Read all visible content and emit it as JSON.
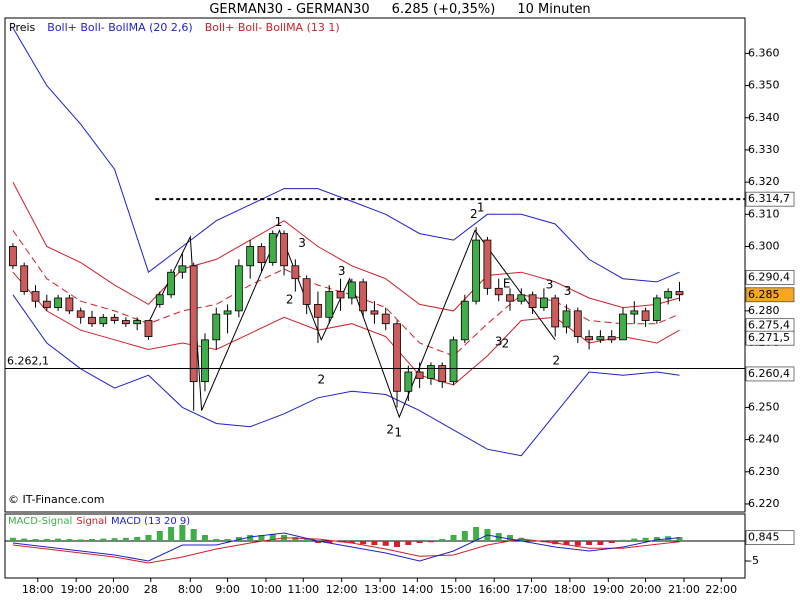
{
  "chart_data": [
    {
      "type": "candlestick",
      "title": "GERMAN30 - GERMAN30",
      "quote": "6.285 (+0,35%)",
      "interval": "10 Minuten",
      "ohlc_name": "Preis",
      "up_color": "#3fae49",
      "down_color": "#cd5c5c",
      "ohlc": [
        [
          6.3,
          6.301,
          6.293,
          6.294
        ],
        [
          6.294,
          6.295,
          6.285,
          6.286
        ],
        [
          6.286,
          6.288,
          6.281,
          6.283
        ],
        [
          6.283,
          6.285,
          6.28,
          6.281
        ],
        [
          6.281,
          6.285,
          6.28,
          6.284
        ],
        [
          6.284,
          6.285,
          6.279,
          6.28
        ],
        [
          6.28,
          6.281,
          6.276,
          6.278
        ],
        [
          6.278,
          6.28,
          6.275,
          6.276
        ],
        [
          6.276,
          6.279,
          6.275,
          6.278
        ],
        [
          6.278,
          6.279,
          6.276,
          6.277
        ],
        [
          6.277,
          6.278,
          6.275,
          6.276
        ],
        [
          6.276,
          6.278,
          6.274,
          6.277
        ],
        [
          6.277,
          6.277,
          6.271,
          6.272
        ],
        [
          6.282,
          6.286,
          6.281,
          6.285
        ],
        [
          6.285,
          6.293,
          6.284,
          6.292
        ],
        [
          6.292,
          6.298,
          6.29,
          6.294
        ],
        [
          6.294,
          6.295,
          6.249,
          6.258
        ],
        [
          6.258,
          6.273,
          6.255,
          6.271
        ],
        [
          6.271,
          6.281,
          6.268,
          6.279
        ],
        [
          6.279,
          6.282,
          6.273,
          6.28
        ],
        [
          6.28,
          6.296,
          6.278,
          6.294
        ],
        [
          6.294,
          6.302,
          6.29,
          6.3
        ],
        [
          6.3,
          6.301,
          6.292,
          6.295
        ],
        [
          6.295,
          6.305,
          6.294,
          6.304
        ],
        [
          6.304,
          6.305,
          6.291,
          6.294
        ],
        [
          6.294,
          6.296,
          6.286,
          6.29
        ],
        [
          6.29,
          6.291,
          6.279,
          6.282
        ],
        [
          6.282,
          6.286,
          6.27,
          6.278
        ],
        [
          6.278,
          6.288,
          6.276,
          6.286
        ],
        [
          6.286,
          6.29,
          6.28,
          6.284
        ],
        [
          6.284,
          6.29,
          6.282,
          6.289
        ],
        [
          6.289,
          6.29,
          6.278,
          6.28
        ],
        [
          6.28,
          6.283,
          6.276,
          6.279
        ],
        [
          6.279,
          6.281,
          6.274,
          6.276
        ],
        [
          6.276,
          6.277,
          6.25,
          6.255
        ],
        [
          6.255,
          6.263,
          6.252,
          6.261
        ],
        [
          6.261,
          6.264,
          6.256,
          6.259
        ],
        [
          6.259,
          6.264,
          6.257,
          6.263
        ],
        [
          6.263,
          6.264,
          6.256,
          6.258
        ],
        [
          6.258,
          6.272,
          6.257,
          6.271
        ],
        [
          6.271,
          6.285,
          6.27,
          6.283
        ],
        [
          6.283,
          6.306,
          6.282,
          6.302
        ],
        [
          6.302,
          6.303,
          6.285,
          6.287
        ],
        [
          6.287,
          6.29,
          6.283,
          6.285
        ],
        [
          6.285,
          6.287,
          6.28,
          6.283
        ],
        [
          6.283,
          6.287,
          6.282,
          6.285
        ],
        [
          6.285,
          6.286,
          6.279,
          6.281
        ],
        [
          6.281,
          6.287,
          6.28,
          6.284
        ],
        [
          6.284,
          6.285,
          6.272,
          6.275
        ],
        [
          6.275,
          6.282,
          6.273,
          6.28
        ],
        [
          6.28,
          6.281,
          6.27,
          6.272
        ],
        [
          6.272,
          6.274,
          6.268,
          6.271
        ],
        [
          6.271,
          6.274,
          6.27,
          6.272
        ],
        [
          6.272,
          6.274,
          6.27,
          6.271
        ],
        [
          6.271,
          6.281,
          6.271,
          6.279
        ],
        [
          6.279,
          6.283,
          6.276,
          6.28
        ],
        [
          6.28,
          6.281,
          6.275,
          6.277
        ],
        [
          6.277,
          6.285,
          6.276,
          6.284
        ],
        [
          6.284,
          6.287,
          6.282,
          6.286
        ],
        [
          6.286,
          6.289,
          6.283,
          6.285
        ]
      ],
      "overlays": [
        {
          "name": "Boll+ Boll- BollMA (20 2,6)",
          "color": "#1f1fcc",
          "x": [
            0,
            3,
            6,
            9,
            12,
            15,
            18,
            21,
            24,
            27,
            30,
            33,
            36,
            39,
            42,
            45,
            48,
            51,
            54,
            57,
            59
          ],
          "upper": [
            6.368,
            6.35,
            6.338,
            6.324,
            6.292,
            6.3,
            6.308,
            6.313,
            6.318,
            6.318,
            6.314,
            6.31,
            6.304,
            6.302,
            6.31,
            6.31,
            6.307,
            6.296,
            6.29,
            6.289,
            6.292
          ],
          "lower": [
            6.285,
            6.27,
            6.262,
            6.256,
            6.26,
            6.25,
            6.245,
            6.244,
            6.248,
            6.253,
            6.255,
            6.254,
            6.249,
            6.243,
            6.237,
            6.235,
            6.248,
            6.261,
            6.26,
            6.261,
            6.26
          ]
        },
        {
          "name": "Boll+ Boll- BollMA (13 1)",
          "color": "#d0202a",
          "x": [
            0,
            3,
            6,
            9,
            12,
            15,
            18,
            21,
            24,
            27,
            30,
            33,
            36,
            39,
            42,
            45,
            48,
            51,
            54,
            57,
            59
          ],
          "upper": [
            6.32,
            6.3,
            6.295,
            6.288,
            6.282,
            6.293,
            6.296,
            6.302,
            6.308,
            6.3,
            6.294,
            6.29,
            6.282,
            6.28,
            6.291,
            6.292,
            6.289,
            6.284,
            6.281,
            6.282,
            6.284
          ],
          "lower": [
            6.292,
            6.28,
            6.274,
            6.271,
            6.268,
            6.27,
            6.268,
            6.273,
            6.278,
            6.274,
            6.276,
            6.272,
            6.26,
            6.257,
            6.266,
            6.277,
            6.278,
            6.27,
            6.272,
            6.27,
            6.274
          ],
          "middle": [
            6.305,
            6.29,
            6.283,
            6.28,
            6.276,
            6.28,
            6.282,
            6.288,
            6.293,
            6.288,
            6.285,
            6.281,
            6.27,
            6.266,
            6.276,
            6.285,
            6.283,
            6.277,
            6.276,
            6.276,
            6.279
          ]
        }
      ],
      "zigzag": {
        "x": [
          12.1,
          15.7,
          16.7,
          23.6,
          27.3,
          29.8,
          34.2,
          40.9,
          48.0
        ],
        "values": [
          6.277,
          6.303,
          6.249,
          6.305,
          6.271,
          6.29,
          6.247,
          6.305,
          6.271
        ]
      },
      "signals": [
        {
          "text": "1",
          "x": 23.5,
          "y": 6.3075,
          "color": "#d0202a"
        },
        {
          "text": "3",
          "x": 25.6,
          "y": 6.301,
          "color": "#d0202a"
        },
        {
          "text": "2",
          "x": 24.5,
          "y": 6.2833,
          "color": "#d0202a"
        },
        {
          "text": "3",
          "x": 29.1,
          "y": 6.2923,
          "color": "#d0202a"
        },
        {
          "text": "2",
          "x": 27.3,
          "y": 6.2585,
          "color": "#d0202a"
        },
        {
          "text": "2",
          "x": 33.4,
          "y": 6.243,
          "color": "#d0202a"
        },
        {
          "text": "1",
          "x": 34.1,
          "y": 6.242,
          "color": "#2e9b3b"
        },
        {
          "text": "2",
          "x": 40.8,
          "y": 6.31,
          "color": "#2e9b3b"
        },
        {
          "text": "1",
          "x": 41.4,
          "y": 6.3119,
          "color": "#d0202a"
        },
        {
          "text": "E",
          "x": 43.7,
          "y": 6.2883,
          "color": "#2e9b3b"
        },
        {
          "text": "3",
          "x": 43.0,
          "y": 6.2703,
          "color": "#2e9b3b"
        },
        {
          "text": "2",
          "x": 43.6,
          "y": 6.2697,
          "color": "#d0202a"
        },
        {
          "text": "3",
          "x": 47.5,
          "y": 6.288,
          "color": "#d0202a"
        },
        {
          "text": "3",
          "x": 49.1,
          "y": 6.286,
          "color": "#d0202a"
        },
        {
          "text": "2",
          "x": 48.1,
          "y": 6.2644,
          "color": "#d0202a"
        }
      ],
      "hline": {
        "value": 6.2621,
        "label": "6.262,1"
      },
      "resistance": {
        "value": 6.3147,
        "label": "6.314,7",
        "start": 12.6
      },
      "levels": [
        {
          "value": 6.2904,
          "label": "6.290,4"
        },
        {
          "value": 6.2754,
          "label": "6.275,4"
        },
        {
          "value": 6.2715,
          "label": "6.271,5"
        },
        {
          "value": 6.2604,
          "label": "6.260,4"
        }
      ],
      "last_price": 6.285,
      "last_price_color": "#f5a623",
      "xlim": [
        -0.7,
        64.8
      ],
      "ylim": [
        6.2175,
        6.371
      ],
      "xticks": [
        {
          "value": 2.2,
          "label": "18:00"
        },
        {
          "value": 5.6,
          "label": "19:00"
        },
        {
          "value": 8.9,
          "label": "20:00"
        },
        {
          "value": 12.2,
          "label": "28"
        },
        {
          "value": 15.7,
          "label": "8:00"
        },
        {
          "value": 19.0,
          "label": "9:00"
        },
        {
          "value": 22.4,
          "label": "10:00"
        },
        {
          "value": 25.7,
          "label": "11:00"
        },
        {
          "value": 29.1,
          "label": "12:00"
        },
        {
          "value": 32.5,
          "label": "13:00"
        },
        {
          "value": 35.8,
          "label": "14:00"
        },
        {
          "value": 39.2,
          "label": "15:00"
        },
        {
          "value": 42.6,
          "label": "16:00"
        },
        {
          "value": 45.9,
          "label": "17:00"
        },
        {
          "value": 49.3,
          "label": "18:00"
        },
        {
          "value": 52.7,
          "label": "19:00"
        },
        {
          "value": 56.0,
          "label": "20:00"
        },
        {
          "value": 59.4,
          "label": "21:00"
        },
        {
          "value": 62.7,
          "label": "22:00"
        }
      ],
      "yticks": [
        {
          "value": 6.22,
          "label": "6.220"
        },
        {
          "value": 6.23,
          "label": "6.230"
        },
        {
          "value": 6.24,
          "label": "6.240"
        },
        {
          "value": 6.25,
          "label": "6.250"
        },
        {
          "value": 6.26,
          "label": "6.260"
        },
        {
          "value": 6.27,
          "label": "6.270"
        },
        {
          "value": 6.28,
          "label": "6.280"
        },
        {
          "value": 6.29,
          "label": "6.290"
        },
        {
          "value": 6.3,
          "label": "6.300"
        },
        {
          "value": 6.31,
          "label": "6.310"
        },
        {
          "value": 6.32,
          "label": "6.320"
        },
        {
          "value": 6.33,
          "label": "6.330"
        },
        {
          "value": 6.34,
          "label": "6.340"
        },
        {
          "value": 6.35,
          "label": "6.350"
        },
        {
          "value": 6.36,
          "label": "6.360"
        }
      ],
      "watermark": "© IT-Finance.com"
    },
    {
      "type": "macd",
      "histogram": {
        "name": "MACD-Signal",
        "color": "#3fae49",
        "down_color": "#d0202a",
        "values": [
          0.8,
          0.6,
          0.5,
          0.5,
          0.6,
          0.5,
          0.4,
          0.5,
          0.6,
          0.7,
          0.8,
          1.0,
          1.5,
          2.5,
          3.5,
          4,
          3,
          1.5,
          0.5,
          0.5,
          1,
          1.5,
          1.5,
          1.8,
          1.5,
          1,
          0.5,
          -0.5,
          -0.5,
          -0.3,
          -0.5,
          -0.8,
          -1,
          -1.2,
          -1.5,
          -1,
          -0.5,
          -0.3,
          0.5,
          1.5,
          2.5,
          3.5,
          3,
          2,
          1.5,
          0.8,
          0.3,
          -0.3,
          -0.8,
          -1,
          -1.2,
          -1,
          -1,
          -0.5,
          0.3,
          0.6,
          0.8,
          1,
          1.2,
          1
        ]
      },
      "signal": {
        "name": "Signal",
        "color": "#d0202a",
        "x": [
          0,
          3,
          6,
          9,
          12,
          15,
          18,
          21,
          24,
          27,
          30,
          33,
          36,
          39,
          42,
          45,
          48,
          51,
          54,
          57,
          59
        ],
        "values": [
          -1,
          -2,
          -3,
          -4,
          -5.5,
          -4,
          -2,
          -0.5,
          0.8,
          0.5,
          -0.5,
          -2,
          -3.8,
          -3.5,
          -1,
          0.5,
          -0.5,
          -1.8,
          -1.8,
          -0.8,
          -0.2
        ]
      },
      "macd": {
        "name": "MACD (13 20 9)",
        "color": "#1f1fcc",
        "x": [
          0,
          3,
          6,
          9,
          12,
          15,
          18,
          21,
          24,
          27,
          30,
          33,
          36,
          39,
          42,
          45,
          48,
          51,
          54,
          57,
          59
        ],
        "values": [
          -0.5,
          -1.5,
          -2.5,
          -3.5,
          -5,
          -1,
          -1,
          1,
          2,
          0,
          -1.5,
          -3,
          -5,
          -2.5,
          1.5,
          0,
          -1.5,
          -2.5,
          -1.5,
          0.3,
          0.8
        ]
      },
      "last_value": {
        "value": 0.845,
        "label": "0,845"
      },
      "ylim": [
        -9.25,
        6.75
      ],
      "yticks": [
        -5
      ]
    }
  ]
}
